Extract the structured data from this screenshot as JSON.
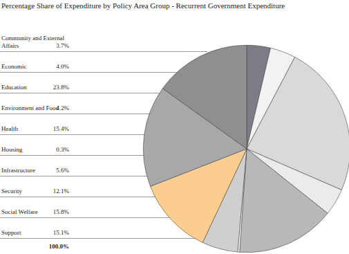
{
  "chart_data": {
    "type": "pie",
    "title": "Percentage Share of Expenditure by Policy Area Group - Recurrent Government Expenditure",
    "categories": [
      "Community and External Affairs",
      "Economic",
      "Education",
      "Environment and Food",
      "Health",
      "Housing",
      "Infrastructure",
      "Security",
      "Social Welfare",
      "Support"
    ],
    "values": [
      3.7,
      4.0,
      23.8,
      4.2,
      15.4,
      0.3,
      5.6,
      12.1,
      15.8,
      15.1
    ],
    "value_labels": [
      "3.7%",
      "4.0%",
      "23.8%",
      "4.2%",
      "15.4%",
      "0.3%",
      "5.6%",
      "12.1%",
      "15.8%",
      "15.1%"
    ],
    "colors": [
      "#7d7b86",
      "#f2f2f2",
      "#d9d9d9",
      "#ebebeb",
      "#b8b8b8",
      "#ffffff",
      "#cfcfcf",
      "#fbcd8e",
      "#a8a8a8",
      "#8f8f8f"
    ],
    "annotations": [
      "100.0%"
    ],
    "legend": false
  }
}
